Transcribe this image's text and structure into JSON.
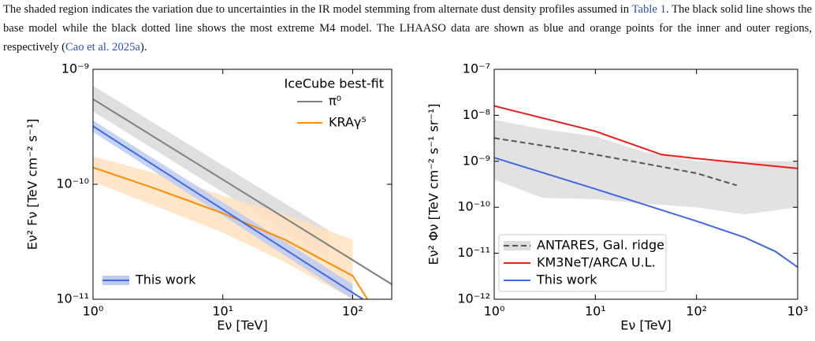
{
  "caption": [
    "The shaded region indicates the variation due to uncertainties in the IR model stemming from alternate dust density profiles assumed in ",
    "Table 1",
    ". The black solid line shows the base model while the black dotted line shows the most extreme M4 model. The LHAASO data are shown as blue and orange points for the inner and outer regions, respectively (",
    "Cao et al. 2025a",
    ")."
  ],
  "chart_data": [
    {
      "type": "line",
      "xscale": "log",
      "yscale": "log",
      "xlabel": "Eν [TeV]",
      "ylabel": "Eν² Fν [TeV cm⁻² s⁻¹]",
      "xlim": [
        1,
        200
      ],
      "ylim": [
        1e-11,
        1e-09
      ],
      "xticks": [
        {
          "value": 1,
          "label": "10⁰"
        },
        {
          "value": 10,
          "label": "10¹"
        },
        {
          "value": 100,
          "label": "10²"
        }
      ],
      "yticks": [
        {
          "value": 1e-11,
          "label": "10⁻¹¹"
        },
        {
          "value": 1e-10,
          "label": "10⁻¹⁰"
        },
        {
          "value": 1e-09,
          "label": "10⁻⁹"
        }
      ],
      "legend_title": {
        "loc": "upper right",
        "text": "IceCube best-fit"
      },
      "legend_frame": false,
      "series": [
        {
          "name": "π⁰",
          "color": "#808080",
          "band_color": "#d9d9d9",
          "legend": "upper right",
          "dash": false,
          "x": [
            1,
            200
          ],
          "values": [
            5.5e-10,
            1.35e-11
          ],
          "band": {
            "x": [
              1,
              65
            ],
            "high": [
              7.2e-10,
              4e-11
            ],
            "low": [
              4.3e-10,
              2.3e-11
            ]
          }
        },
        {
          "name": "KRAγ⁵",
          "color": "#ff8c00",
          "band_color": "#ffe2bf",
          "legend": "upper right",
          "dash": false,
          "x": [
            1,
            3,
            10,
            30,
            100,
            130
          ],
          "values": [
            1.4e-10,
            9.2e-11,
            5.6e-11,
            3.3e-11,
            1.6e-11,
            1e-11
          ],
          "band": {
            "x": [
              1,
              3,
              10,
              30,
              100
            ],
            "high": [
              1.75e-10,
              1.25e-10,
              8e-11,
              5.5e-11,
              3.3e-11
            ],
            "low": [
              1.05e-10,
              6.5e-11,
              3.8e-11,
              2.1e-11,
              1e-11
            ]
          }
        },
        {
          "name": "This work",
          "color": "#4169e1",
          "band_color": "#bccbf3",
          "legend": "lower left",
          "dash": false,
          "x": [
            1,
            120
          ],
          "values": [
            3.2e-10,
            1e-11
          ],
          "band": {
            "x": [
              1,
              100
            ],
            "high": [
              3.6e-10,
              1.35e-11
            ],
            "low": [
              2.85e-10,
              1e-11
            ]
          }
        }
      ]
    },
    {
      "type": "line",
      "xscale": "log",
      "yscale": "log",
      "xlabel": "Eν [TeV]",
      "ylabel": "Eν² Φν [TeV cm⁻² s⁻¹ sr⁻¹]",
      "xlim": [
        1,
        1000
      ],
      "ylim": [
        1e-12,
        1e-07
      ],
      "xticks": [
        {
          "value": 1,
          "label": "10⁰"
        },
        {
          "value": 10,
          "label": "10¹"
        },
        {
          "value": 100,
          "label": "10²"
        },
        {
          "value": 1000,
          "label": "10³"
        }
      ],
      "yticks": [
        {
          "value": 1e-12,
          "label": "10⁻¹²"
        },
        {
          "value": 1e-11,
          "label": "10⁻¹¹"
        },
        {
          "value": 1e-10,
          "label": "10⁻¹⁰"
        },
        {
          "value": 1e-09,
          "label": "10⁻⁹"
        },
        {
          "value": 1e-08,
          "label": "10⁻⁸"
        },
        {
          "value": 1e-07,
          "label": "10⁻⁷"
        }
      ],
      "legend_frame": true,
      "series": [
        {
          "name": "ANTARES, Gal. ridge",
          "color": "#555555",
          "band_color": "#dddddd",
          "legend": "lower left",
          "dash": true,
          "x": [
            1,
            3,
            10,
            30,
            100,
            250
          ],
          "values": [
            3.2e-09,
            2.2e-09,
            1.4e-09,
            9e-10,
            5.5e-10,
            3e-10
          ],
          "band": {
            "x": [
              1,
              3,
              10,
              30,
              100,
              300,
              1000
            ],
            "high": [
              8e-09,
              5e-09,
              3.5e-09,
              1.6e-09,
              1e-09,
              1e-09,
              1e-09
            ],
            "low": [
              4e-10,
              1.6e-10,
              1.5e-10,
              1.2e-10,
              1e-10,
              7e-11,
              1e-10
            ]
          }
        },
        {
          "name": "KM3NeT/ARCA U.L.",
          "color": "#ee1c1c",
          "legend": "lower left",
          "dash": false,
          "x": [
            1,
            10,
            45,
            100,
            1000
          ],
          "values": [
            1.6e-08,
            4.5e-09,
            1.4e-09,
            1.15e-09,
            7e-10
          ]
        },
        {
          "name": "This work",
          "color": "#4169e1",
          "legend": "lower left",
          "dash": false,
          "x": [
            1,
            10,
            100,
            300,
            600,
            1000
          ],
          "values": [
            1.2e-09,
            2.5e-10,
            5e-11,
            2.2e-11,
            1.1e-11,
            5e-12
          ]
        }
      ]
    }
  ]
}
